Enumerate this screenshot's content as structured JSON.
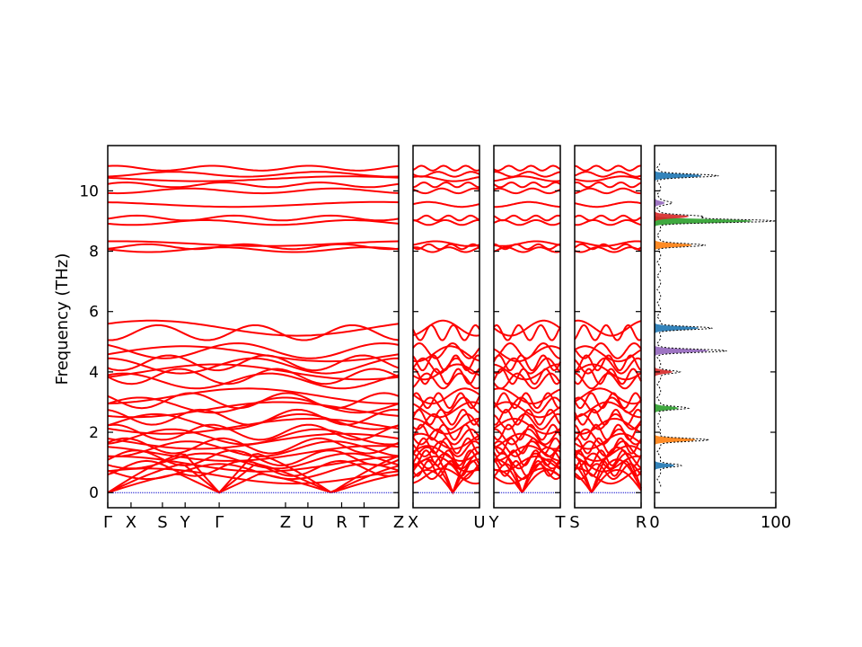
{
  "chart_data": {
    "type": "line",
    "title": "",
    "ylabel": "Frequency (THz)",
    "ylim": [
      -0.5,
      11.5
    ],
    "yticks": [
      0,
      2,
      4,
      6,
      8,
      10
    ],
    "grid": false,
    "line_color": "#ff0000",
    "zero_line_color": "#0000cc",
    "panels": [
      {
        "id": "main",
        "tick_labels": [
          "Γ",
          "X",
          "S",
          "Y",
          "Γ",
          "Z",
          "U",
          "R",
          "T",
          "Z"
        ],
        "tick_positions": [
          0,
          0.08,
          0.188,
          0.266,
          0.383,
          0.611,
          0.688,
          0.804,
          0.881,
          1.0
        ]
      },
      {
        "id": "x-u",
        "tick_labels": [
          "X",
          "U"
        ],
        "tick_positions": [
          0,
          1
        ]
      },
      {
        "id": "y-t",
        "tick_labels": [
          "Y",
          "T"
        ],
        "tick_positions": [
          0,
          1
        ]
      },
      {
        "id": "s-r",
        "tick_labels": [
          "S",
          "R"
        ],
        "tick_positions": [
          0,
          1
        ]
      }
    ],
    "band_frequencies_at_gamma": [
      0.0,
      0.0,
      0.0,
      0.55,
      0.7,
      0.8,
      0.95,
      1.05,
      1.15,
      1.3,
      1.45,
      1.55,
      1.7,
      1.85,
      2.0,
      2.2,
      2.35,
      2.5,
      2.75,
      2.9,
      3.05,
      3.2,
      3.7,
      3.85,
      4.0,
      4.2,
      4.3,
      4.6,
      4.7,
      5.3,
      5.45,
      8.05,
      8.15,
      8.25,
      8.95,
      9.1,
      9.55,
      10.0,
      10.2,
      10.4,
      10.55,
      10.75
    ],
    "dos": {
      "xlim": [
        0,
        100
      ],
      "xticks": [
        0,
        100
      ],
      "total_peaks": [
        {
          "freq": 0.9,
          "value": 20
        },
        {
          "freq": 1.75,
          "value": 42
        },
        {
          "freq": 2.8,
          "value": 24
        },
        {
          "freq": 4.0,
          "value": 18
        },
        {
          "freq": 4.7,
          "value": 55
        },
        {
          "freq": 5.45,
          "value": 45
        },
        {
          "freq": 8.2,
          "value": 38
        },
        {
          "freq": 9.0,
          "value": 100
        },
        {
          "freq": 9.15,
          "value": 35
        },
        {
          "freq": 9.6,
          "value": 10
        },
        {
          "freq": 10.5,
          "value": 48
        }
      ],
      "partial_colors": [
        "#1f77b4",
        "#ff7f0e",
        "#2ca02c",
        "#d62728",
        "#9467bd"
      ]
    }
  }
}
